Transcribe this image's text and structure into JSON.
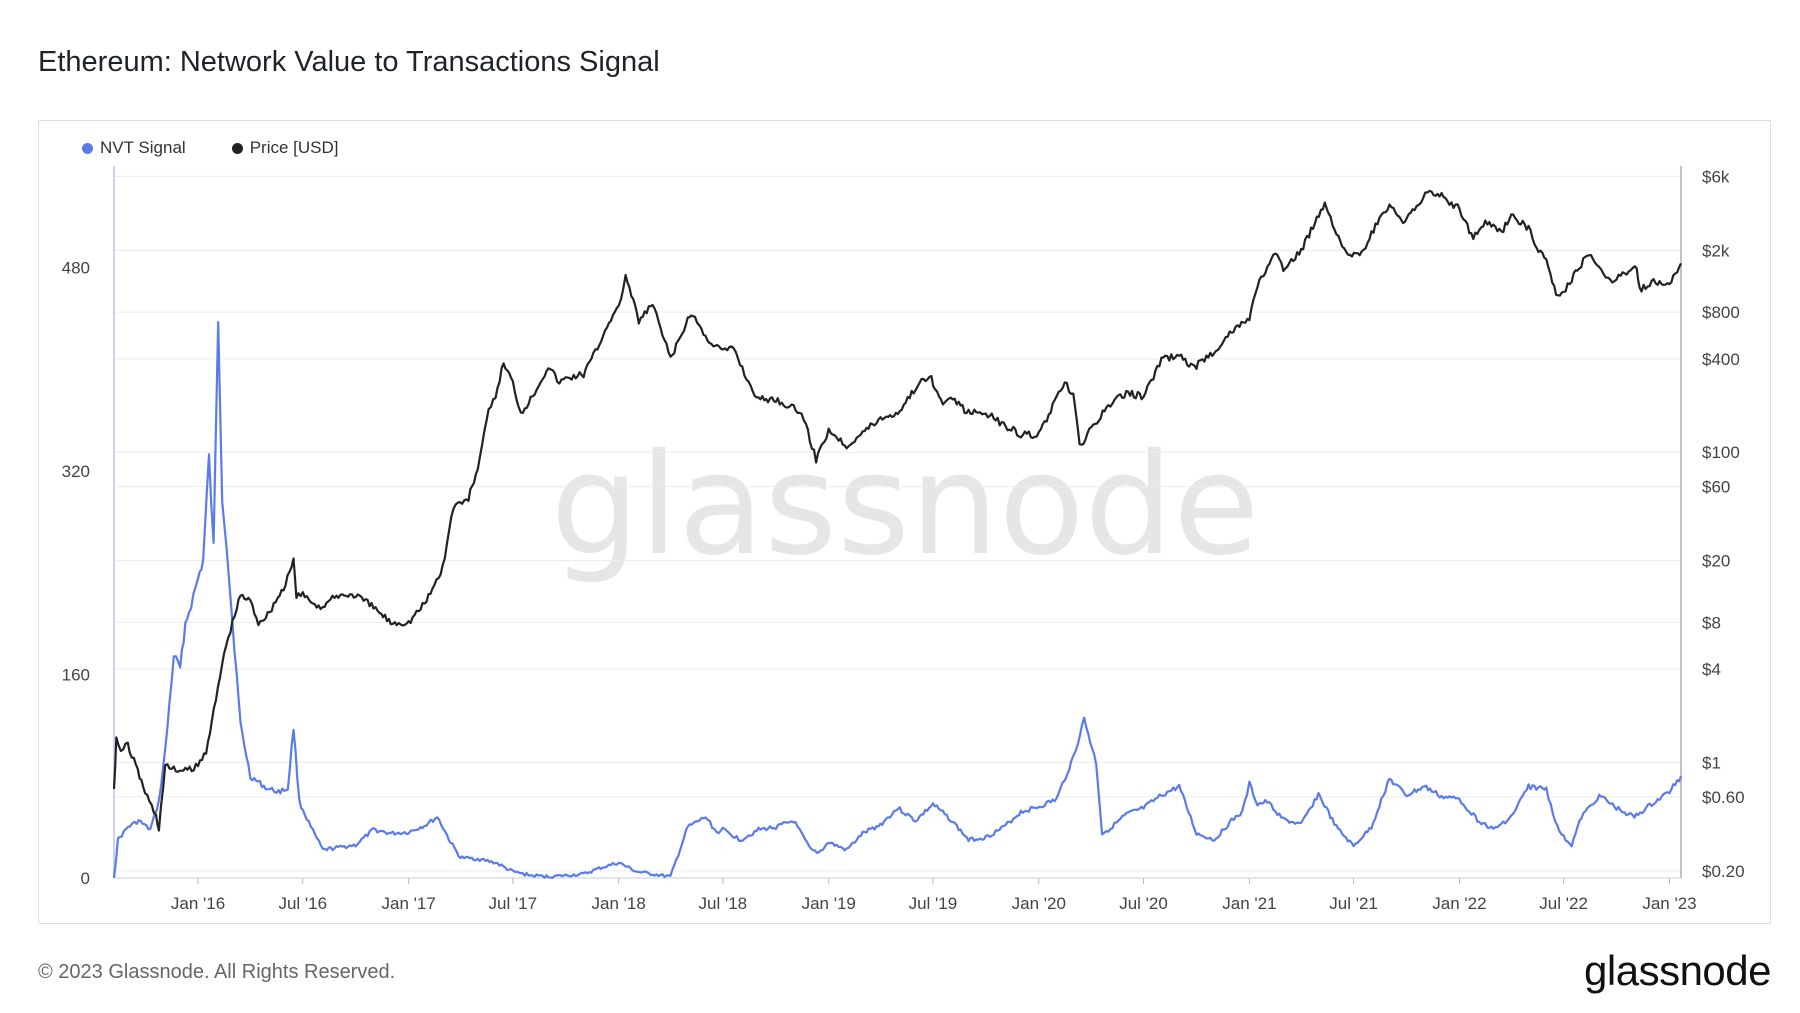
{
  "page": {
    "title": "Ethereum: Network Value to Transactions Signal",
    "footer": "© 2023 Glassnode. All Rights Reserved.",
    "brand": "glassnode",
    "watermark": "glassnode"
  },
  "colors": {
    "nvt": "#5b7be9",
    "price": "#222222",
    "grid": "#ececec",
    "watermark": "#e6e6e6"
  },
  "chart_data": {
    "type": "line",
    "title": "Ethereum: Network Value to Transactions Signal",
    "legend": {
      "placement": "top-left",
      "entries": [
        "NVT Signal",
        "Price [USD]"
      ]
    },
    "grid": true,
    "x_ticks": [
      "Jan '16",
      "Jul '16",
      "Jan '17",
      "Jul '17",
      "Jan '18",
      "Jul '18",
      "Jan '19",
      "Jul '19",
      "Jan '20",
      "Jul '20",
      "Jan '21",
      "Jul '21",
      "Jan '22",
      "Jul '22",
      "Jan '23"
    ],
    "x_tick_dates": [
      "2016-01-01",
      "2016-07-01",
      "2017-01-01",
      "2017-07-01",
      "2018-01-01",
      "2018-07-01",
      "2019-01-01",
      "2019-07-01",
      "2020-01-01",
      "2020-07-01",
      "2021-01-01",
      "2021-07-01",
      "2022-01-01",
      "2022-07-01",
      "2023-01-01"
    ],
    "xlim": [
      "2015-08-08",
      "2023-01-21"
    ],
    "y_left": {
      "ticks": [
        "0",
        "160",
        "320",
        "480"
      ],
      "tick_values": [
        0,
        160,
        320,
        480
      ],
      "ylim": [
        0,
        560
      ]
    },
    "y_right": {
      "scale": "log",
      "ticks": [
        "$6k",
        "$2k",
        "$800",
        "$400",
        "$100",
        "$60",
        "$20",
        "$8",
        "$4",
        "$1",
        "$0.60",
        "$0.20"
      ],
      "tick_values": [
        6000,
        2000,
        800,
        400,
        100,
        60,
        20,
        8,
        4,
        1,
        0.6,
        0.2
      ],
      "ylim": [
        0.18,
        7000
      ]
    },
    "series": [
      {
        "name": "NVT Signal",
        "axis": "left",
        "points": [
          [
            "2015-08-08",
            0
          ],
          [
            "2015-08-15",
            30
          ],
          [
            "2015-09-01",
            40
          ],
          [
            "2015-09-20",
            45
          ],
          [
            "2015-10-10",
            38
          ],
          [
            "2015-10-25",
            60
          ],
          [
            "2015-11-05",
            100
          ],
          [
            "2015-11-20",
            175
          ],
          [
            "2015-12-01",
            165
          ],
          [
            "2015-12-10",
            200
          ],
          [
            "2015-12-20",
            215
          ],
          [
            "2016-01-01",
            235
          ],
          [
            "2016-01-10",
            250
          ],
          [
            "2016-01-20",
            330
          ],
          [
            "2016-01-28",
            260
          ],
          [
            "2016-02-05",
            440
          ],
          [
            "2016-02-12",
            300
          ],
          [
            "2016-02-20",
            260
          ],
          [
            "2016-03-01",
            200
          ],
          [
            "2016-03-15",
            120
          ],
          [
            "2016-04-01",
            80
          ],
          [
            "2016-05-01",
            70
          ],
          [
            "2016-05-20",
            68
          ],
          [
            "2016-06-05",
            70
          ],
          [
            "2016-06-15",
            118
          ],
          [
            "2016-06-25",
            60
          ],
          [
            "2016-07-15",
            40
          ],
          [
            "2016-08-05",
            22
          ],
          [
            "2016-09-01",
            24
          ],
          [
            "2016-10-01",
            26
          ],
          [
            "2016-11-01",
            38
          ],
          [
            "2016-12-01",
            35
          ],
          [
            "2017-01-01",
            36
          ],
          [
            "2017-02-01",
            42
          ],
          [
            "2017-02-20",
            48
          ],
          [
            "2017-03-15",
            28
          ],
          [
            "2017-04-01",
            16
          ],
          [
            "2017-05-01",
            15
          ],
          [
            "2017-06-01",
            12
          ],
          [
            "2017-07-01",
            5
          ],
          [
            "2017-08-01",
            2
          ],
          [
            "2017-09-01",
            1
          ],
          [
            "2017-10-01",
            2
          ],
          [
            "2017-11-01",
            3
          ],
          [
            "2017-12-01",
            8
          ],
          [
            "2018-01-01",
            12
          ],
          [
            "2018-02-01",
            5
          ],
          [
            "2018-03-01",
            3
          ],
          [
            "2018-04-01",
            1
          ],
          [
            "2018-05-01",
            40
          ],
          [
            "2018-06-01",
            48
          ],
          [
            "2018-06-20",
            36
          ],
          [
            "2018-07-01",
            38
          ],
          [
            "2018-08-01",
            30
          ],
          [
            "2018-09-01",
            38
          ],
          [
            "2018-10-01",
            40
          ],
          [
            "2018-11-01",
            45
          ],
          [
            "2018-12-01",
            22
          ],
          [
            "2018-12-15",
            20
          ],
          [
            "2019-01-01",
            28
          ],
          [
            "2019-02-01",
            22
          ],
          [
            "2019-03-01",
            35
          ],
          [
            "2019-04-01",
            42
          ],
          [
            "2019-05-01",
            55
          ],
          [
            "2019-06-01",
            45
          ],
          [
            "2019-07-01",
            58
          ],
          [
            "2019-08-01",
            46
          ],
          [
            "2019-09-01",
            30
          ],
          [
            "2019-10-01",
            32
          ],
          [
            "2019-11-01",
            40
          ],
          [
            "2019-12-01",
            52
          ],
          [
            "2020-01-01",
            56
          ],
          [
            "2020-02-01",
            62
          ],
          [
            "2020-03-01",
            95
          ],
          [
            "2020-03-20",
            125
          ],
          [
            "2020-04-10",
            90
          ],
          [
            "2020-04-20",
            35
          ],
          [
            "2020-05-01",
            38
          ],
          [
            "2020-06-01",
            50
          ],
          [
            "2020-07-01",
            55
          ],
          [
            "2020-08-01",
            65
          ],
          [
            "2020-09-01",
            72
          ],
          [
            "2020-10-01",
            35
          ],
          [
            "2020-11-01",
            30
          ],
          [
            "2020-12-01",
            45
          ],
          [
            "2020-12-20",
            52
          ],
          [
            "2021-01-01",
            74
          ],
          [
            "2021-01-15",
            58
          ],
          [
            "2021-02-01",
            60
          ],
          [
            "2021-03-01",
            46
          ],
          [
            "2021-04-01",
            42
          ],
          [
            "2021-05-01",
            66
          ],
          [
            "2021-06-01",
            40
          ],
          [
            "2021-07-01",
            25
          ],
          [
            "2021-08-01",
            40
          ],
          [
            "2021-09-01",
            78
          ],
          [
            "2021-10-01",
            65
          ],
          [
            "2021-11-01",
            72
          ],
          [
            "2021-12-01",
            64
          ],
          [
            "2022-01-01",
            62
          ],
          [
            "2022-02-01",
            46
          ],
          [
            "2022-03-01",
            38
          ],
          [
            "2022-04-01",
            48
          ],
          [
            "2022-05-01",
            72
          ],
          [
            "2022-06-01",
            70
          ],
          [
            "2022-06-20",
            40
          ],
          [
            "2022-07-01",
            32
          ],
          [
            "2022-07-15",
            26
          ],
          [
            "2022-08-01",
            48
          ],
          [
            "2022-09-01",
            65
          ],
          [
            "2022-10-01",
            55
          ],
          [
            "2022-11-01",
            48
          ],
          [
            "2022-12-01",
            58
          ],
          [
            "2023-01-01",
            68
          ],
          [
            "2023-01-21",
            80
          ]
        ]
      },
      {
        "name": "Price [USD]",
        "axis": "right",
        "points": [
          [
            "2015-08-08",
            0.7
          ],
          [
            "2015-08-12",
            1.4
          ],
          [
            "2015-08-20",
            1.2
          ],
          [
            "2015-09-01",
            1.3
          ],
          [
            "2015-09-15",
            0.95
          ],
          [
            "2015-10-01",
            0.65
          ],
          [
            "2015-10-20",
            0.45
          ],
          [
            "2015-10-25",
            0.38
          ],
          [
            "2015-11-05",
            0.95
          ],
          [
            "2015-11-20",
            0.9
          ],
          [
            "2015-12-10",
            0.88
          ],
          [
            "2016-01-01",
            0.95
          ],
          [
            "2016-01-15",
            1.2
          ],
          [
            "2016-02-01",
            2.5
          ],
          [
            "2016-02-15",
            5
          ],
          [
            "2016-03-01",
            8
          ],
          [
            "2016-03-15",
            12
          ],
          [
            "2016-04-01",
            11
          ],
          [
            "2016-04-15",
            8
          ],
          [
            "2016-05-01",
            9
          ],
          [
            "2016-05-15",
            11
          ],
          [
            "2016-06-01",
            14
          ],
          [
            "2016-06-15",
            20
          ],
          [
            "2016-06-20",
            12
          ],
          [
            "2016-07-01",
            12
          ],
          [
            "2016-07-15",
            11
          ],
          [
            "2016-08-01",
            10
          ],
          [
            "2016-09-01",
            12
          ],
          [
            "2016-10-01",
            12
          ],
          [
            "2016-11-01",
            10
          ],
          [
            "2016-12-01",
            8
          ],
          [
            "2017-01-01",
            8
          ],
          [
            "2017-02-01",
            11
          ],
          [
            "2017-03-01",
            18
          ],
          [
            "2017-03-20",
            45
          ],
          [
            "2017-04-15",
            50
          ],
          [
            "2017-05-01",
            80
          ],
          [
            "2017-05-20",
            180
          ],
          [
            "2017-06-01",
            230
          ],
          [
            "2017-06-15",
            380
          ],
          [
            "2017-07-01",
            280
          ],
          [
            "2017-07-15",
            180
          ],
          [
            "2017-08-01",
            220
          ],
          [
            "2017-09-01",
            360
          ],
          [
            "2017-09-20",
            280
          ],
          [
            "2017-10-01",
            300
          ],
          [
            "2017-11-01",
            320
          ],
          [
            "2017-11-25",
            470
          ],
          [
            "2017-12-15",
            700
          ],
          [
            "2018-01-01",
            850
          ],
          [
            "2018-01-13",
            1380
          ],
          [
            "2018-02-05",
            700
          ],
          [
            "2018-03-01",
            900
          ],
          [
            "2018-04-01",
            400
          ],
          [
            "2018-05-01",
            700
          ],
          [
            "2018-05-10",
            780
          ],
          [
            "2018-06-01",
            550
          ],
          [
            "2018-07-01",
            450
          ],
          [
            "2018-07-20",
            470
          ],
          [
            "2018-08-15",
            280
          ],
          [
            "2018-09-01",
            220
          ],
          [
            "2018-10-01",
            220
          ],
          [
            "2018-11-15",
            180
          ],
          [
            "2018-12-10",
            90
          ],
          [
            "2018-12-20",
            110
          ],
          [
            "2019-01-01",
            140
          ],
          [
            "2019-02-01",
            110
          ],
          [
            "2019-03-01",
            135
          ],
          [
            "2019-04-01",
            165
          ],
          [
            "2019-05-01",
            180
          ],
          [
            "2019-06-01",
            260
          ],
          [
            "2019-06-25",
            320
          ],
          [
            "2019-07-15",
            210
          ],
          [
            "2019-08-01",
            220
          ],
          [
            "2019-09-01",
            180
          ],
          [
            "2019-10-01",
            180
          ],
          [
            "2019-11-01",
            150
          ],
          [
            "2019-12-01",
            130
          ],
          [
            "2020-01-01",
            130
          ],
          [
            "2020-02-01",
            220
          ],
          [
            "2020-02-15",
            280
          ],
          [
            "2020-03-01",
            230
          ],
          [
            "2020-03-12",
            110
          ],
          [
            "2020-04-01",
            140
          ],
          [
            "2020-05-01",
            200
          ],
          [
            "2020-06-01",
            240
          ],
          [
            "2020-07-01",
            230
          ],
          [
            "2020-08-01",
            390
          ],
          [
            "2020-09-01",
            430
          ],
          [
            "2020-09-15",
            370
          ],
          [
            "2020-10-01",
            360
          ],
          [
            "2020-11-01",
            450
          ],
          [
            "2020-12-01",
            600
          ],
          [
            "2021-01-01",
            730
          ],
          [
            "2021-01-15",
            1200
          ],
          [
            "2021-02-15",
            1900
          ],
          [
            "2021-03-01",
            1500
          ],
          [
            "2021-04-01",
            2000
          ],
          [
            "2021-05-12",
            4100
          ],
          [
            "2021-06-01",
            2600
          ],
          [
            "2021-06-25",
            1800
          ],
          [
            "2021-07-15",
            1900
          ],
          [
            "2021-08-15",
            3200
          ],
          [
            "2021-09-05",
            3900
          ],
          [
            "2021-09-25",
            2900
          ],
          [
            "2021-10-15",
            3800
          ],
          [
            "2021-11-10",
            4800
          ],
          [
            "2021-12-01",
            4500
          ],
          [
            "2022-01-01",
            3700
          ],
          [
            "2022-01-25",
            2400
          ],
          [
            "2022-02-15",
            3100
          ],
          [
            "2022-03-15",
            2600
          ],
          [
            "2022-04-01",
            3400
          ],
          [
            "2022-05-01",
            2800
          ],
          [
            "2022-05-15",
            2000
          ],
          [
            "2022-06-01",
            1800
          ],
          [
            "2022-06-18",
            1000
          ],
          [
            "2022-07-01",
            1050
          ],
          [
            "2022-07-15",
            1300
          ],
          [
            "2022-08-14",
            1950
          ],
          [
            "2022-09-01",
            1500
          ],
          [
            "2022-09-20",
            1300
          ],
          [
            "2022-10-01",
            1300
          ],
          [
            "2022-11-05",
            1600
          ],
          [
            "2022-11-10",
            1100
          ],
          [
            "2022-12-01",
            1250
          ],
          [
            "2023-01-01",
            1200
          ],
          [
            "2023-01-21",
            1650
          ]
        ]
      }
    ]
  }
}
